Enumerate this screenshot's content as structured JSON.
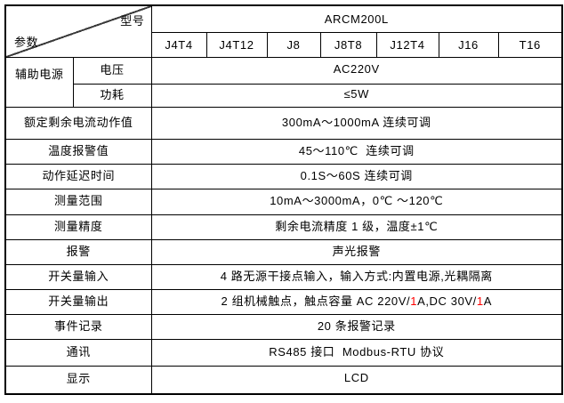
{
  "colors": {
    "border": "#000000",
    "text": "#000000",
    "accent_red": "#ff0000",
    "background": "#ffffff"
  },
  "header": {
    "corner_top_right": "型号",
    "corner_bottom_left": "参数",
    "model": "ARCM200L",
    "variants": [
      "J4T4",
      "J4T12",
      "J8",
      "J8T8",
      "J12T4",
      "J16",
      "T16"
    ]
  },
  "aux_power": {
    "label": "辅助电源",
    "sub_rows": [
      {
        "name": "电压",
        "value": "AC220V"
      },
      {
        "name": "功耗",
        "value": "≤5W"
      }
    ]
  },
  "specs": [
    {
      "label": "额定剩余电流动作值",
      "value": "300mA～1000mA 连续可调"
    },
    {
      "label": "温度报警值",
      "value": "45～110℃  连续可调"
    },
    {
      "label": "动作延迟时间",
      "value": "0.1S～60S 连续可调"
    },
    {
      "label": "测量范围",
      "value": "10mA～3000mA，0℃ ～120℃"
    },
    {
      "label": "测量精度",
      "value": "剩余电流精度 1 级，温度±1℃"
    },
    {
      "label": "报警",
      "value": "声光报警"
    },
    {
      "label": "开关量输入",
      "value": "4 路无源干接点输入，输入方式:内置电源,光耦隔离"
    },
    {
      "label": "开关量输出",
      "value_parts": [
        {
          "text": "2 组机械触点，触点容量 AC 220V/"
        },
        {
          "text": "1",
          "color": "#ff0000"
        },
        {
          "text": "A,DC 30V/"
        },
        {
          "text": "1",
          "color": "#ff0000"
        },
        {
          "text": "A"
        }
      ]
    },
    {
      "label": "事件记录",
      "value": "20 条报警记录"
    },
    {
      "label": "通讯",
      "value": "RS485 接口  Modbus-RTU 协议"
    },
    {
      "label": "显示",
      "value": "LCD"
    }
  ]
}
